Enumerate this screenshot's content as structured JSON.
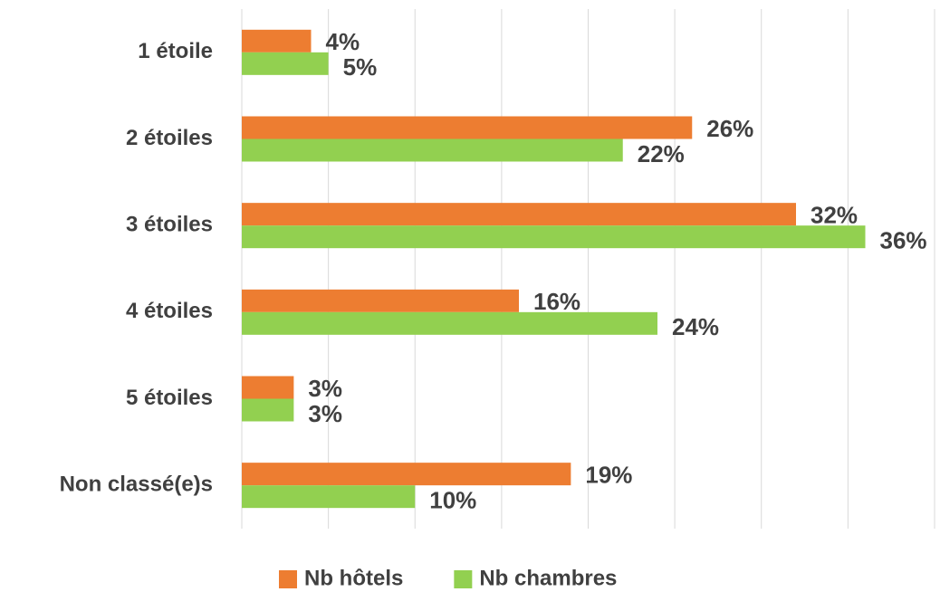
{
  "chart_data": {
    "type": "barh",
    "categories": [
      "1 étoile",
      "2 étoiles",
      "3 étoiles",
      "4 étoiles",
      "5 étoiles",
      "Non classé(e)s"
    ],
    "series": [
      {
        "name": "Nb hôtels",
        "color": "#ED7D31",
        "values": [
          4,
          26,
          32,
          16,
          3,
          19
        ],
        "value_labels": [
          "4%",
          "26%",
          "32%",
          "16%",
          "3%",
          "19%"
        ]
      },
      {
        "name": "Nb chambres",
        "color": "#92D050",
        "values": [
          5,
          22,
          36,
          24,
          3,
          10
        ],
        "value_labels": [
          "5%",
          "22%",
          "36%",
          "24%",
          "3%",
          "10%"
        ]
      }
    ],
    "xlim": [
      0,
      40
    ],
    "xticks": [
      0,
      5,
      10,
      15,
      20,
      25,
      30,
      35,
      40
    ],
    "grid": true,
    "legend": "bottom"
  }
}
